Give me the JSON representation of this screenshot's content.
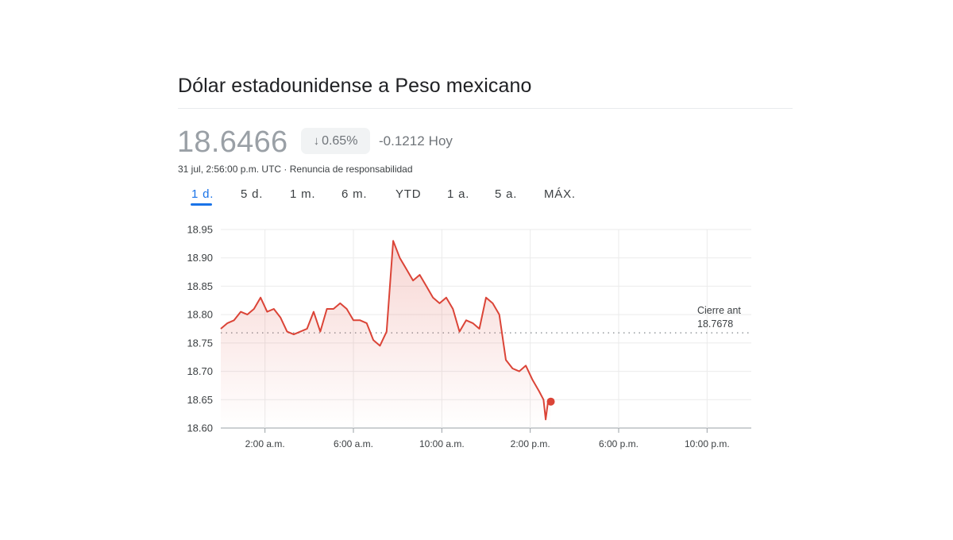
{
  "title": "Dólar estadounidense a Peso mexicano",
  "price": "18.6466",
  "change_pct": "0.65%",
  "change_abs": "-0.1212",
  "change_period": "Hoy",
  "timestamp": "31 jul, 2:56:00 p.m. UTC",
  "separator": "·",
  "disclaimer": "Renuncia de responsabilidad",
  "ranges": [
    "1 d.",
    "5 d.",
    "1 m.",
    "6 m.",
    "YTD",
    "1 a.",
    "5 a.",
    "MÁX."
  ],
  "active_range": "1 d.",
  "colors": {
    "line": "#db4437",
    "accent": "#1a73e8",
    "muted": "#9aa0a6"
  },
  "icons": {
    "change_direction": "arrow-down-icon"
  },
  "chart_data": {
    "type": "line",
    "ylim": [
      18.6,
      18.95
    ],
    "y_ticks": [
      "18.95",
      "18.90",
      "18.85",
      "18.80",
      "18.75",
      "18.70",
      "18.65",
      "18.60"
    ],
    "x_ticks": [
      "2:00 a.m.",
      "6:00 a.m.",
      "10:00 a.m.",
      "2:00 p.m.",
      "6:00 p.m.",
      "10:00 p.m."
    ],
    "x_tick_hours": [
      2,
      6,
      10,
      14,
      18,
      22
    ],
    "x_range_hours": [
      0,
      24
    ],
    "grid": true,
    "previous_close": {
      "label": "Cierre ant",
      "value": 18.7678,
      "value_text": "18.7678"
    },
    "series": [
      {
        "x": [
          0.0,
          0.3,
          0.6,
          0.9,
          1.2,
          1.5,
          1.8,
          2.1,
          2.4,
          2.7,
          3.0,
          3.3,
          3.6,
          3.9,
          4.2,
          4.5,
          4.8,
          5.1,
          5.4,
          5.7,
          6.0,
          6.3,
          6.6,
          6.9,
          7.2,
          7.5,
          7.8,
          8.1,
          8.4,
          8.7,
          9.0,
          9.3,
          9.6,
          9.9,
          10.2,
          10.5,
          10.8,
          11.1,
          11.4,
          11.7,
          12.0,
          12.3,
          12.6,
          12.9,
          13.2,
          13.5,
          13.8,
          14.1,
          14.4,
          14.6,
          14.7,
          14.8,
          14.93
        ],
        "y": [
          18.775,
          18.785,
          18.79,
          18.805,
          18.8,
          18.81,
          18.83,
          18.805,
          18.81,
          18.795,
          18.77,
          18.765,
          18.77,
          18.775,
          18.805,
          18.77,
          18.81,
          18.81,
          18.82,
          18.81,
          18.79,
          18.79,
          18.785,
          18.755,
          18.745,
          18.77,
          18.93,
          18.9,
          18.88,
          18.86,
          18.87,
          18.85,
          18.83,
          18.82,
          18.83,
          18.81,
          18.77,
          18.79,
          18.785,
          18.775,
          18.83,
          18.82,
          18.8,
          18.72,
          18.705,
          18.7,
          18.71,
          18.685,
          18.665,
          18.65,
          18.615,
          18.645,
          18.6466
        ]
      }
    ]
  }
}
